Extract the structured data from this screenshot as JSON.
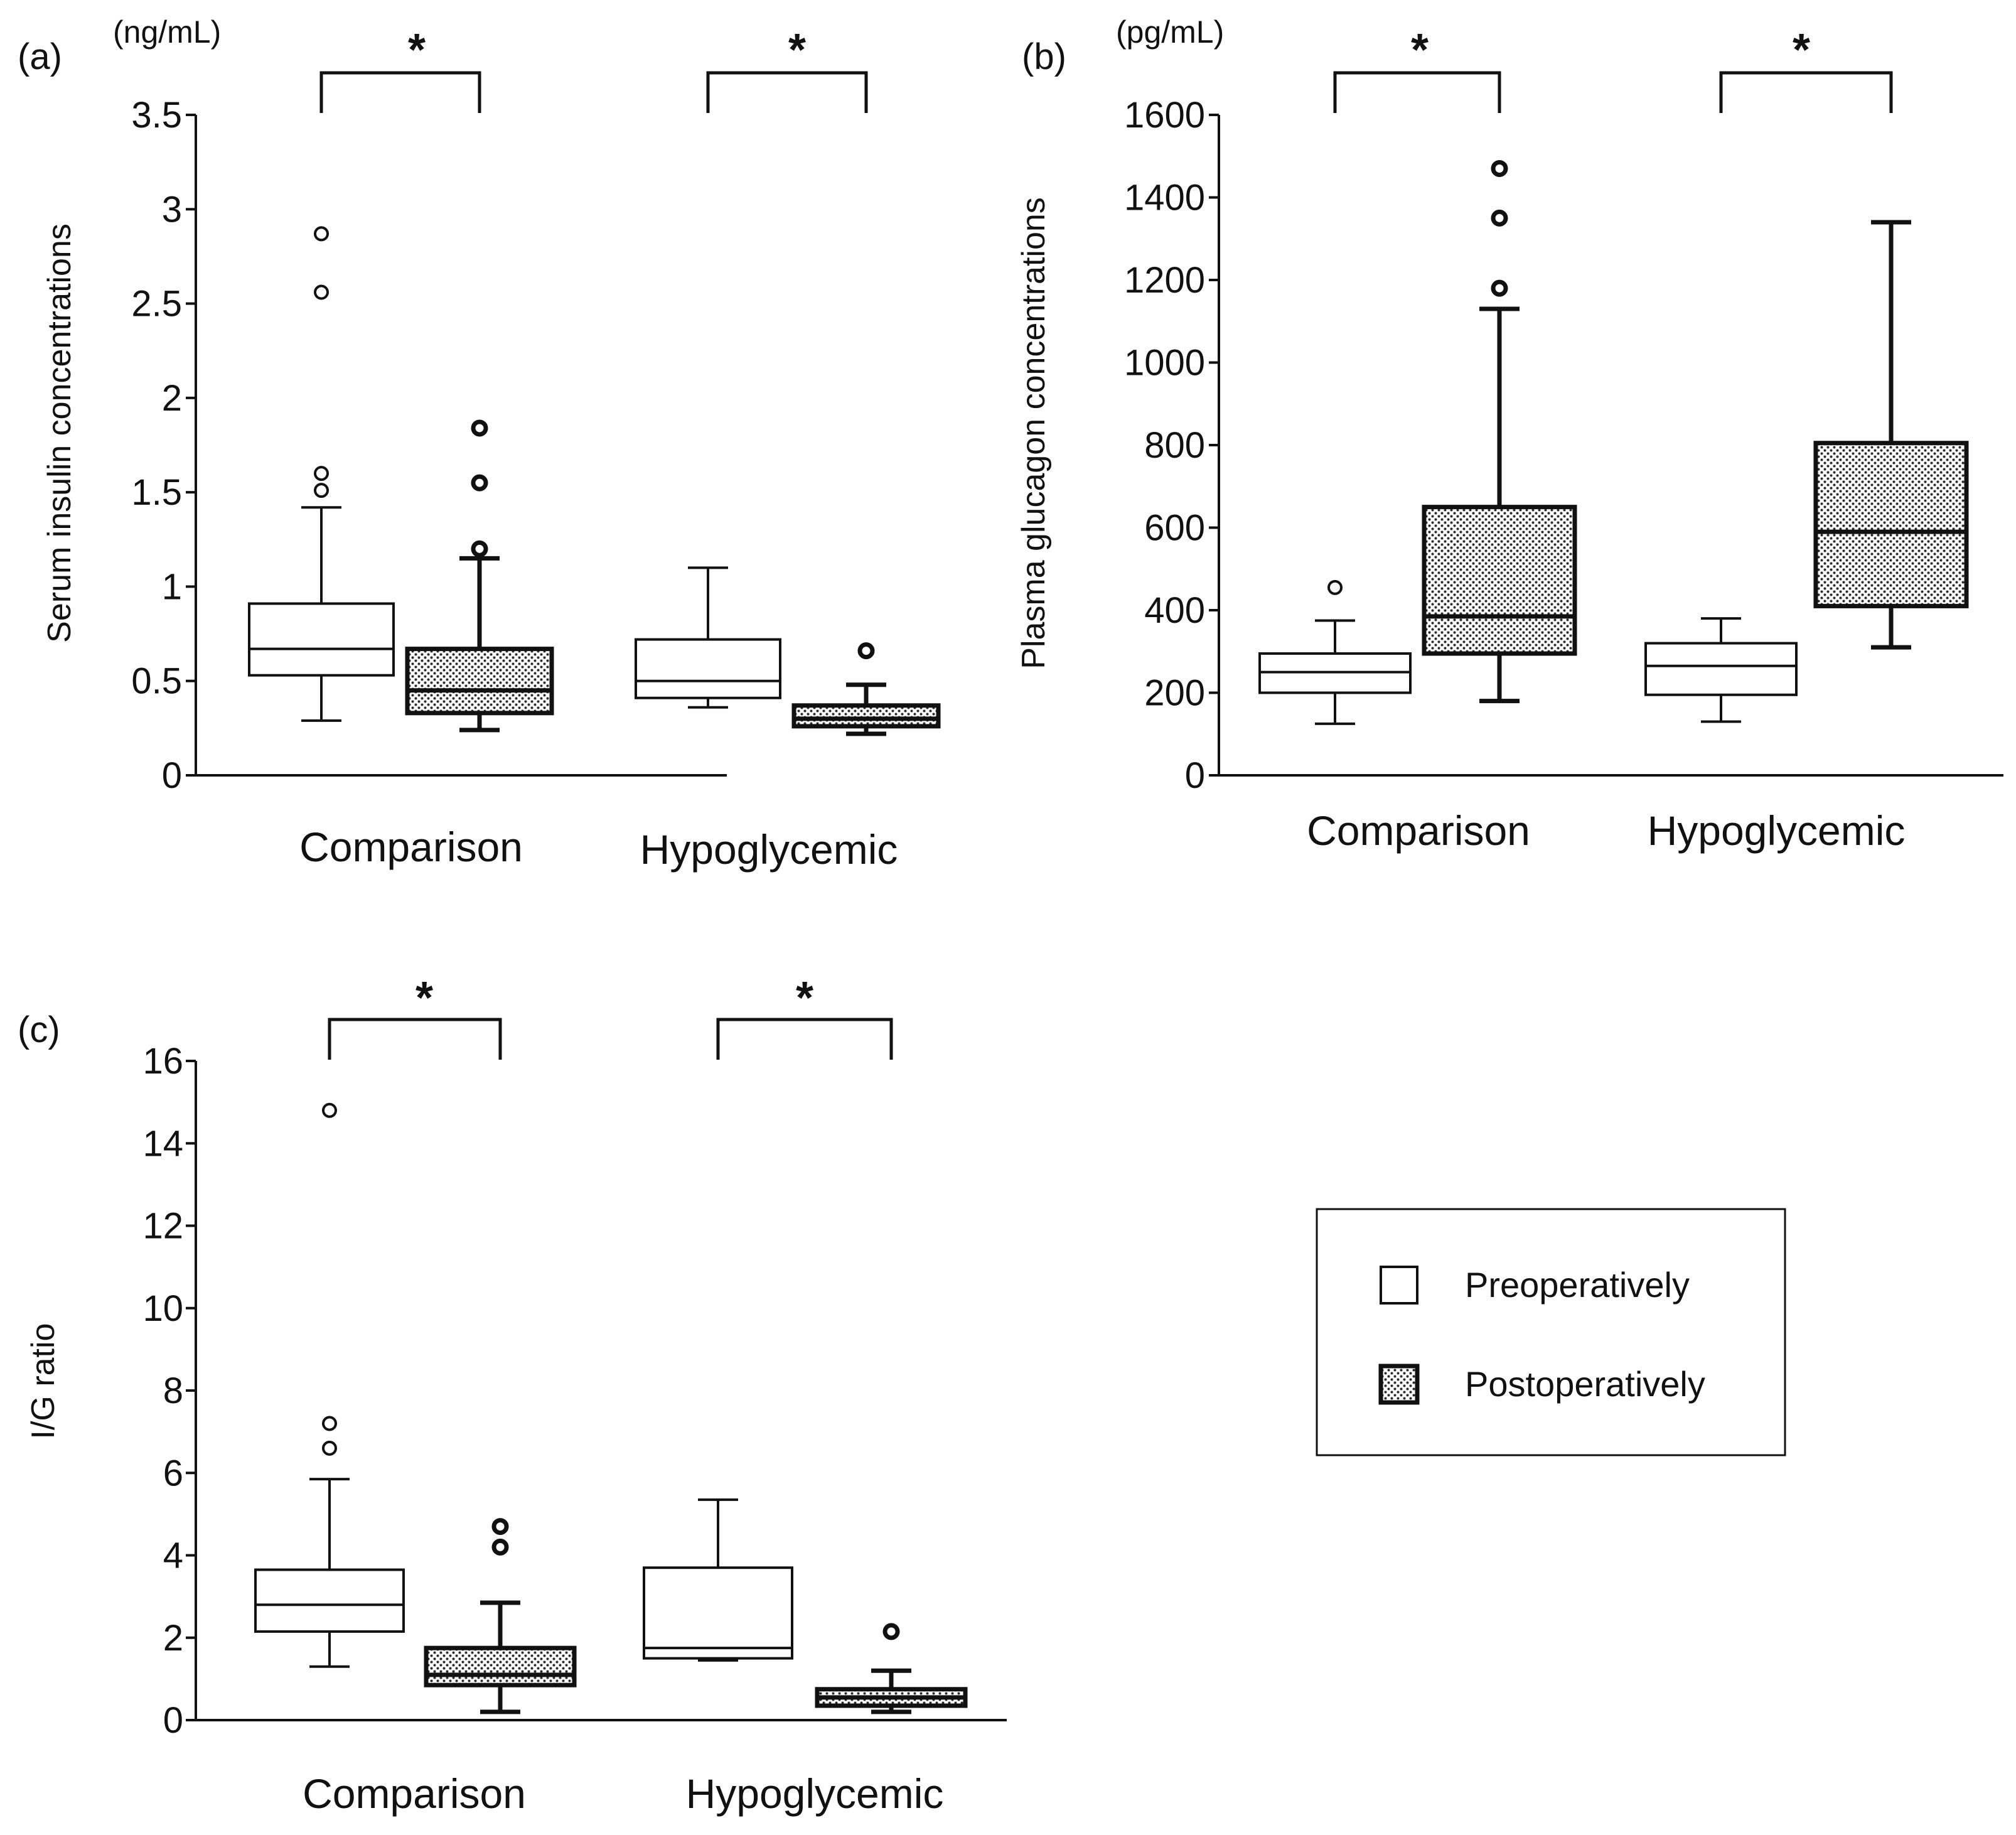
{
  "chart_data": [
    {
      "type": "boxplot",
      "panel": "(a)",
      "unit": "(ng/mL)",
      "ylabel": "Serum insulin concentrations",
      "ylim": [
        0,
        3.5
      ],
      "yticks": [
        0,
        0.5,
        1,
        1.5,
        2,
        2.5,
        3,
        3.5
      ],
      "ytick_labels": [
        "0",
        "0.5",
        "1",
        "1.5",
        "2",
        "2.5",
        "3",
        "3.5"
      ],
      "categories": [
        "Comparison",
        "Hypoglycemic"
      ],
      "significance": [
        "*",
        "*"
      ],
      "series": [
        {
          "name": "Preoperatively",
          "boxes": [
            {
              "whisker_low": 0.29,
              "q1": 0.53,
              "median": 0.67,
              "q3": 0.91,
              "whisker_high": 1.42,
              "outliers": [
                1.51,
                1.6,
                2.56,
                2.87
              ]
            },
            {
              "whisker_low": 0.36,
              "q1": 0.41,
              "median": 0.5,
              "q3": 0.72,
              "whisker_high": 1.1,
              "outliers": []
            }
          ]
        },
        {
          "name": "Postoperatively",
          "boxes": [
            {
              "whisker_low": 0.24,
              "q1": 0.33,
              "median": 0.45,
              "q3": 0.67,
              "whisker_high": 1.15,
              "outliers": [
                1.2,
                1.55,
                1.84
              ]
            },
            {
              "whisker_low": 0.22,
              "q1": 0.26,
              "median": 0.3,
              "q3": 0.37,
              "whisker_high": 0.48,
              "outliers": [
                0.66
              ]
            }
          ]
        }
      ]
    },
    {
      "type": "boxplot",
      "panel": "(b)",
      "unit": "(pg/mL)",
      "ylabel": "Plasma glucagon concentrations",
      "ylim": [
        0,
        1600
      ],
      "yticks": [
        0,
        200,
        400,
        600,
        800,
        1000,
        1200,
        1400,
        1600
      ],
      "ytick_labels": [
        "0",
        "200",
        "400",
        "600",
        "800",
        "1000",
        "1200",
        "1400",
        "1600"
      ],
      "categories": [
        "Comparison",
        "Hypoglycemic"
      ],
      "significance": [
        "*",
        "*"
      ],
      "series": [
        {
          "name": "Preoperatively",
          "boxes": [
            {
              "whisker_low": 125,
              "q1": 200,
              "median": 250,
              "q3": 295,
              "whisker_high": 375,
              "outliers": [
                455
              ]
            },
            {
              "whisker_low": 130,
              "q1": 195,
              "median": 265,
              "q3": 320,
              "whisker_high": 380,
              "outliers": []
            }
          ]
        },
        {
          "name": "Postoperatively",
          "boxes": [
            {
              "whisker_low": 180,
              "q1": 295,
              "median": 385,
              "q3": 650,
              "whisker_high": 1130,
              "outliers": [
                1180,
                1350,
                1470
              ]
            },
            {
              "whisker_low": 310,
              "q1": 410,
              "median": 590,
              "q3": 805,
              "whisker_high": 1340,
              "outliers": []
            }
          ]
        }
      ]
    },
    {
      "type": "boxplot",
      "panel": "(c)",
      "unit": "",
      "ylabel": "I/G ratio",
      "ylim": [
        0,
        16
      ],
      "yticks": [
        0,
        2,
        4,
        6,
        8,
        10,
        12,
        14,
        16
      ],
      "ytick_labels": [
        "0",
        "2",
        "4",
        "6",
        "8",
        "10",
        "12",
        "14",
        "16"
      ],
      "categories": [
        "Comparison",
        "Hypoglycemic"
      ],
      "significance": [
        "*",
        "*"
      ],
      "series": [
        {
          "name": "Preoperatively",
          "boxes": [
            {
              "whisker_low": 1.3,
              "q1": 2.15,
              "median": 2.8,
              "q3": 3.65,
              "whisker_high": 5.85,
              "outliers": [
                6.6,
                7.2,
                14.8
              ]
            },
            {
              "whisker_low": 1.45,
              "q1": 1.5,
              "median": 1.75,
              "q3": 3.7,
              "whisker_high": 5.35,
              "outliers": []
            }
          ]
        },
        {
          "name": "Postoperatively",
          "boxes": [
            {
              "whisker_low": 0.2,
              "q1": 0.85,
              "median": 1.1,
              "q3": 1.75,
              "whisker_high": 2.85,
              "outliers": [
                4.2,
                4.7
              ]
            },
            {
              "whisker_low": 0.2,
              "q1": 0.35,
              "median": 0.55,
              "q3": 0.75,
              "whisker_high": 1.2,
              "outliers": [
                2.15
              ]
            }
          ]
        }
      ]
    }
  ],
  "legend": {
    "items": [
      {
        "label": "Preoperatively",
        "pattern": "open"
      },
      {
        "label": "Postoperatively",
        "pattern": "dotted"
      }
    ]
  },
  "colors": {
    "ink": "#111111",
    "box_fill": "#ffffff",
    "dot": "#2b2b2b"
  }
}
